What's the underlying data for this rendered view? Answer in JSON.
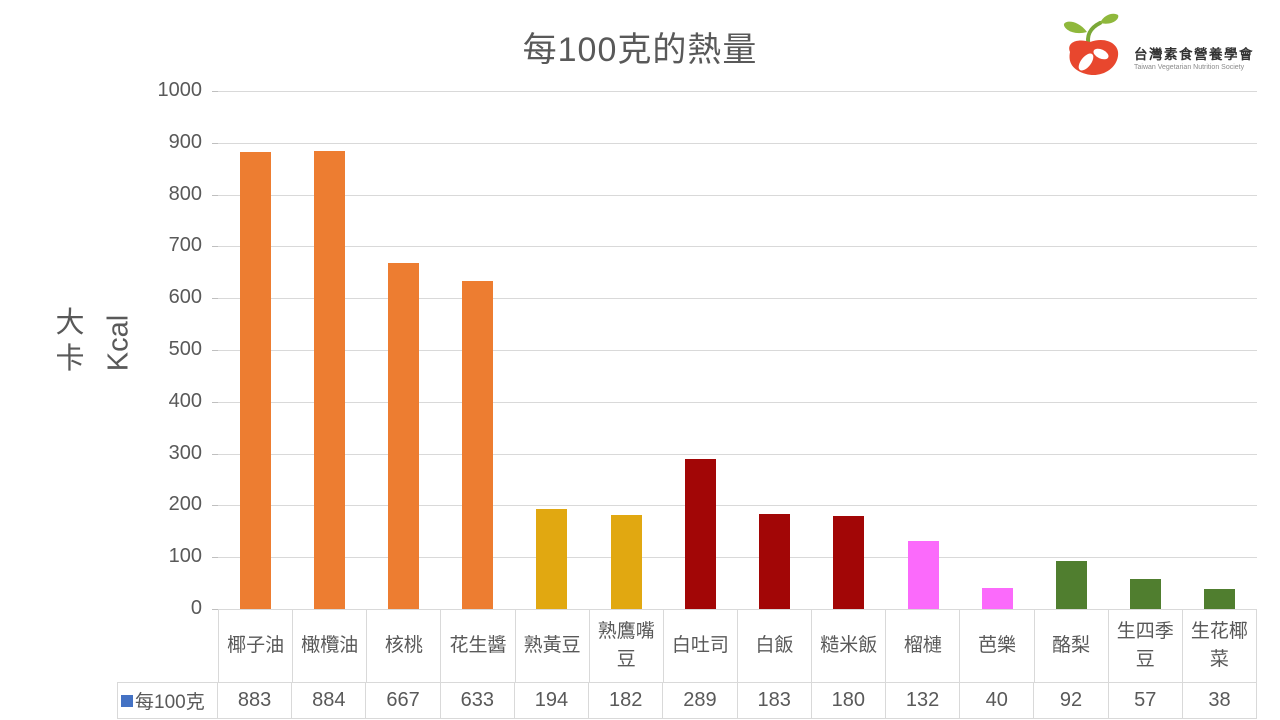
{
  "title": "每100克的熱量",
  "logo": {
    "name_zh": "台灣素食營養學會",
    "name_en": "Taiwan Vegetarian Nutrition Society",
    "bean_red": "#E8472E",
    "leaf_green": "#8FB83C",
    "stem_green": "#7AA837"
  },
  "axis": {
    "y_title_zh": "大卡",
    "y_title_en": "Kcal"
  },
  "legend": {
    "series_label": "每100克",
    "marker_color": "#4472C4"
  },
  "chart_data": {
    "type": "bar",
    "title": "每100克的熱量",
    "xlabel": "",
    "ylabel": "大卡 Kcal",
    "ylim": [
      0,
      1000
    ],
    "yticks": [
      0,
      100,
      200,
      300,
      400,
      500,
      600,
      700,
      800,
      900,
      1000
    ],
    "grid": true,
    "legend_position": "data-table-left",
    "categories": [
      "椰子油",
      "橄欖油",
      "核桃",
      "花生醬",
      "熟黃豆",
      "熟鷹嘴豆",
      "白吐司",
      "白飯",
      "糙米飯",
      "榴槤",
      "芭樂",
      "酪梨",
      "生四季豆",
      "生花椰菜"
    ],
    "series": [
      {
        "name": "每100克",
        "values": [
          883,
          884,
          667,
          633,
          194,
          182,
          289,
          183,
          180,
          132,
          40,
          92,
          57,
          38
        ]
      }
    ],
    "bar_colors": [
      "#ED7D31",
      "#ED7D31",
      "#ED7D31",
      "#ED7D31",
      "#E1A811",
      "#E1A811",
      "#A20606",
      "#A20606",
      "#A20606",
      "#FB6AFB",
      "#FB6AFB",
      "#507E2F",
      "#507E2F",
      "#507E2F"
    ],
    "text_color": "#595959",
    "gridline_color": "#D9D9D9"
  }
}
